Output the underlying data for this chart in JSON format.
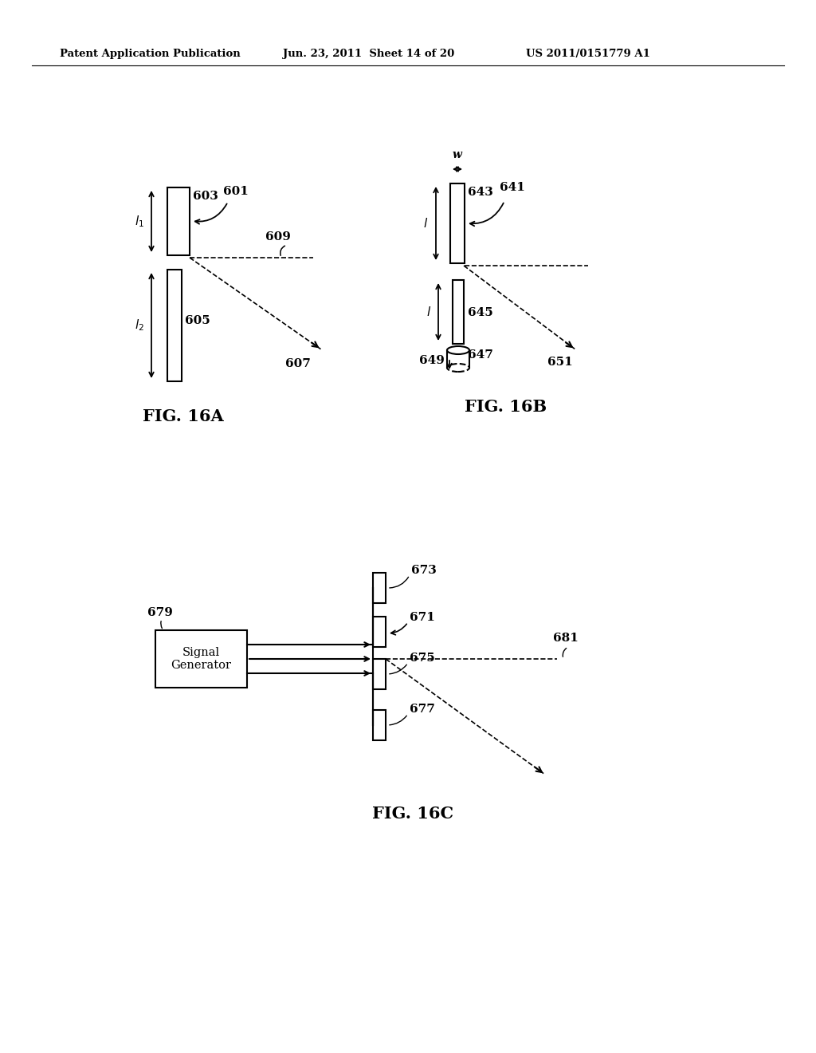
{
  "bg_color": "#ffffff",
  "header_text": "Patent Application Publication",
  "header_date": "Jun. 23, 2011  Sheet 14 of 20",
  "header_patent": "US 2011/0151779 A1",
  "fig16a_title": "FIG. 16A",
  "fig16b_title": "FIG. 16B",
  "fig16c_title": "FIG. 16C",
  "line_color": "#000000",
  "text_color": "#000000"
}
